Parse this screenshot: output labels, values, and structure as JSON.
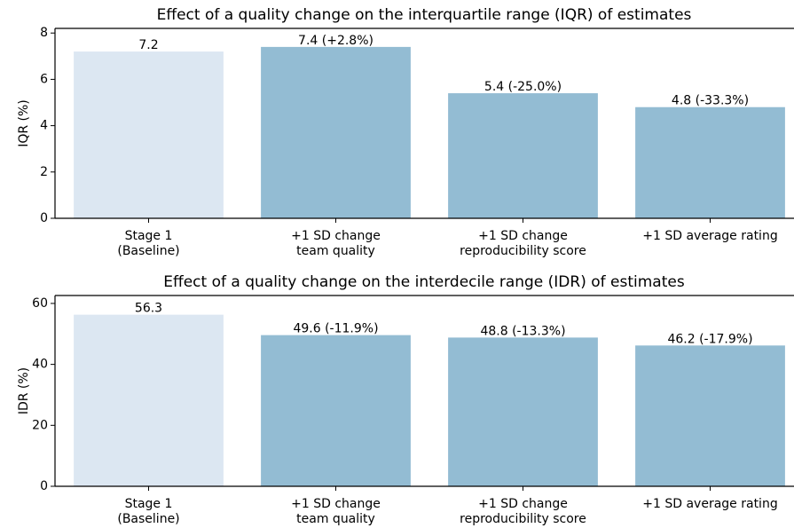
{
  "chart_data": [
    {
      "type": "bar",
      "title": "Effect of a quality change on the interquartile range (IQR) of estimates",
      "ylabel": "IQR (%)",
      "categories": [
        [
          "Stage 1",
          "(Baseline)"
        ],
        [
          "+1 SD change",
          "team quality"
        ],
        [
          "+1 SD change",
          "reproducibility score"
        ],
        [
          "+1 SD average rating"
        ]
      ],
      "values": [
        7.2,
        7.4,
        5.4,
        4.8
      ],
      "value_labels": [
        "7.2",
        "7.4 (+2.8%)",
        "5.4 (-25.0%)",
        "4.8 (-33.3%)"
      ],
      "colors": [
        "#dce7f2",
        "#93bcd3",
        "#93bcd3",
        "#93bcd3"
      ],
      "ylim": [
        0,
        8.2
      ],
      "yticks": [
        0,
        2,
        4,
        6,
        8
      ]
    },
    {
      "type": "bar",
      "title": "Effect of a quality change on the interdecile range (IDR) of estimates",
      "ylabel": "IDR (%)",
      "categories": [
        [
          "Stage 1",
          "(Baseline)"
        ],
        [
          "+1 SD change",
          "team quality"
        ],
        [
          "+1 SD change",
          "reproducibility score"
        ],
        [
          "+1 SD average rating"
        ]
      ],
      "values": [
        56.3,
        49.6,
        48.8,
        46.2
      ],
      "value_labels": [
        "56.3",
        "49.6 (-11.9%)",
        "48.8 (-13.3%)",
        "46.2 (-17.9%)"
      ],
      "colors": [
        "#dce7f2",
        "#93bcd3",
        "#93bcd3",
        "#93bcd3"
      ],
      "ylim": [
        0,
        62.6
      ],
      "yticks": [
        0,
        20,
        40,
        60
      ]
    }
  ]
}
